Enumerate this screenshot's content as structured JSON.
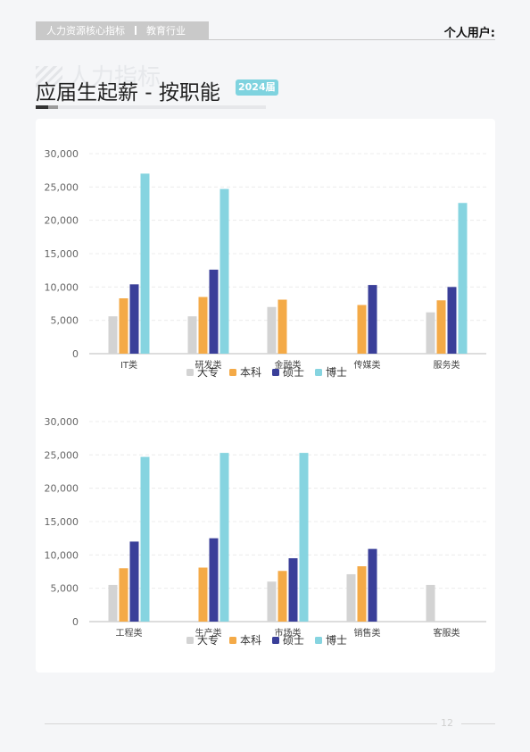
{
  "header": {
    "section": "人力资源核心指标",
    "industry": "教育行业",
    "user_label": "个人用户:"
  },
  "watermark_text": "人力指标",
  "title": "应届生起薪 - 按职能",
  "year_badge": "2024届",
  "page_number": "12",
  "colors": {
    "大专": "#d3d3d3",
    "本科": "#f4aa47",
    "硕士": "#3a3f99",
    "博士": "#86d4e0"
  },
  "chart_data": [
    {
      "type": "bar",
      "categories": [
        "IT类",
        "研发类",
        "金融类",
        "传媒类",
        "服务类"
      ],
      "ylim": [
        0,
        30000
      ],
      "yticks": [
        0,
        5000,
        10000,
        15000,
        20000,
        25000,
        30000
      ],
      "ytick_labels": [
        "0",
        "5,000",
        "10,000",
        "15,000",
        "20,000",
        "25,000",
        "30,000"
      ],
      "grid": true,
      "legend": "bottom",
      "series": [
        {
          "name": "大专",
          "values": [
            5600,
            5600,
            7000,
            null,
            6200
          ]
        },
        {
          "name": "本科",
          "values": [
            8300,
            8500,
            8100,
            7300,
            8000
          ]
        },
        {
          "name": "硕士",
          "values": [
            10400,
            12600,
            null,
            10300,
            10000
          ]
        },
        {
          "name": "博士",
          "values": [
            27000,
            24700,
            null,
            null,
            22600
          ]
        }
      ]
    },
    {
      "type": "bar",
      "categories": [
        "工程类",
        "生产类",
        "市场类",
        "销售类",
        "客服类"
      ],
      "ylim": [
        0,
        30000
      ],
      "yticks": [
        0,
        5000,
        10000,
        15000,
        20000,
        25000,
        30000
      ],
      "ytick_labels": [
        "0",
        "5,000",
        "10,000",
        "15,000",
        "20,000",
        "25,000",
        "30,000"
      ],
      "grid": true,
      "legend": "bottom",
      "series": [
        {
          "name": "大专",
          "values": [
            5500,
            null,
            6000,
            7100,
            5500
          ]
        },
        {
          "name": "本科",
          "values": [
            8000,
            8100,
            7600,
            8300,
            null
          ]
        },
        {
          "name": "硕士",
          "values": [
            12000,
            12500,
            9500,
            10900,
            null
          ]
        },
        {
          "name": "博士",
          "values": [
            24700,
            25300,
            25300,
            null,
            null
          ]
        }
      ]
    }
  ]
}
